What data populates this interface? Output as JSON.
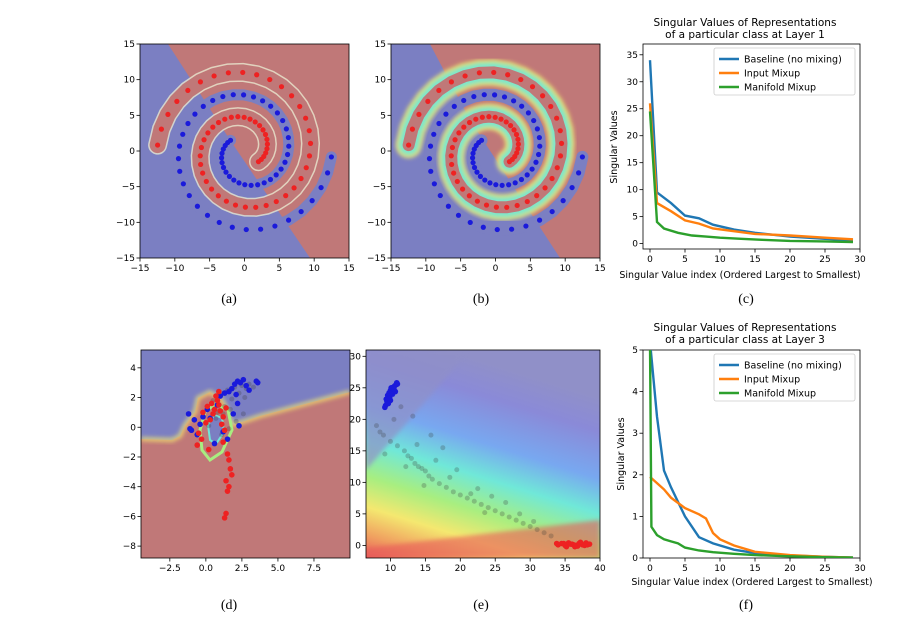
{
  "figure": {
    "captions": [
      "(a)",
      "(b)",
      "(c)",
      "(d)",
      "(e)",
      "(f)"
    ]
  },
  "colors": {
    "blue_region": "#7b7fc2",
    "red_region": "#c07878",
    "blue_point": "#1a1adb",
    "red_point": "#ee2222",
    "baseline": "#1f77b4",
    "input_mixup": "#ff7f0e",
    "manifold_mixup": "#2ca02c"
  },
  "chart_data": [
    {
      "id": "a",
      "type": "scatter",
      "title": "",
      "xlim": [
        -15,
        15
      ],
      "ylim": [
        -15,
        15
      ],
      "xticks": [
        -15,
        -10,
        -5,
        0,
        5,
        10,
        15
      ],
      "yticks": [
        -15,
        -10,
        -5,
        0,
        5,
        10,
        15
      ],
      "series": [
        {
          "name": "class 0 (blue)",
          "spiral": {
            "a": 1.0,
            "t_start": 2.5,
            "t_end": 12.5,
            "n": 55,
            "rotate_pi": false
          }
        },
        {
          "name": "class 1 (red)",
          "spiral": {
            "a": 1.0,
            "t_start": 2.5,
            "t_end": 12.5,
            "n": 55,
            "rotate_pi": true
          }
        }
      ],
      "background": "decision regions (baseline)"
    },
    {
      "id": "b",
      "type": "scatter",
      "title": "",
      "xlim": [
        -15,
        15
      ],
      "ylim": [
        -15,
        15
      ],
      "xticks": [
        -15,
        -10,
        -5,
        0,
        5,
        10,
        15
      ],
      "yticks": [
        -15,
        -10,
        -5,
        0,
        5,
        10,
        15
      ],
      "series": [
        {
          "name": "class 0 (blue)",
          "spiral": {
            "a": 1.0,
            "t_start": 2.5,
            "t_end": 12.5,
            "n": 55,
            "rotate_pi": false
          }
        },
        {
          "name": "class 1 (red)",
          "spiral": {
            "a": 1.0,
            "t_start": 2.5,
            "t_end": 12.5,
            "n": 55,
            "rotate_pi": true
          }
        }
      ],
      "background": "decision regions (manifold mixup)"
    },
    {
      "id": "c",
      "type": "line",
      "title": "Singular Values of Representations\nof a particular class at Layer 1",
      "xlabel": "Singular Value index (Ordered Largest to Smallest)",
      "ylabel": "Singular Values",
      "xlim": [
        -1,
        30
      ],
      "ylim": [
        -1,
        37
      ],
      "xticks": [
        0,
        5,
        10,
        15,
        20,
        25,
        30
      ],
      "yticks": [
        0,
        5,
        10,
        15,
        20,
        25,
        30,
        35
      ],
      "legend_position": "top-right",
      "series": [
        {
          "name": "Baseline (no mixing)",
          "x": [
            0,
            1,
            3,
            5,
            7,
            9,
            12,
            15,
            20,
            25,
            29
          ],
          "values": [
            34,
            9.5,
            7.5,
            5.2,
            4.7,
            3.5,
            2.6,
            2.0,
            1.3,
            0.9,
            0.6
          ]
        },
        {
          "name": "Input Mixup",
          "x": [
            0,
            1,
            3,
            5,
            7,
            9,
            12,
            15,
            20,
            25,
            29
          ],
          "values": [
            26,
            7.5,
            6.0,
            4.3,
            3.7,
            2.8,
            2.3,
            1.8,
            1.5,
            1.1,
            0.8
          ]
        },
        {
          "name": "Manifold Mixup",
          "x": [
            0,
            1,
            2,
            4,
            6,
            8,
            10,
            13,
            16,
            20,
            25,
            29
          ],
          "values": [
            24.5,
            4.0,
            2.8,
            2.0,
            1.5,
            1.3,
            1.1,
            0.9,
            0.7,
            0.5,
            0.4,
            0.3
          ]
        }
      ]
    },
    {
      "id": "d",
      "type": "scatter",
      "title": "",
      "xlim": [
        -4.5,
        10
      ],
      "ylim": [
        -8.8,
        5.2
      ],
      "xticks": [
        -2.5,
        0.0,
        2.5,
        5.0,
        7.5
      ],
      "xtick_labels": [
        "-2.5",
        "0.0",
        "2.5",
        "5.0",
        "7.5"
      ],
      "yticks": [
        -8,
        -6,
        -4,
        -2,
        0,
        2,
        4
      ],
      "series": [
        {
          "name": "class 0 (blue)",
          "x": [
            -1.2,
            -0.8,
            -1.0,
            -0.6,
            -0.4,
            0.1,
            0.3,
            0.8,
            1.0,
            1.3,
            1.6,
            1.8,
            2.0,
            2.2,
            2.4,
            2.6,
            2.8,
            3.0,
            3.5,
            3.6,
            2.2,
            1.9,
            2.3,
            1.2,
            1.5,
            0.6,
            -1.1,
            -0.2,
            2.1
          ],
          "values": [
            0.9,
            0.5,
            -0.2,
            -0.5,
            0.2,
            1.2,
            0.6,
            1.5,
            2.1,
            2.3,
            2.4,
            2.6,
            2.9,
            3.1,
            3.0,
            3.2,
            2.8,
            2.5,
            3.1,
            3.0,
            1.6,
            0.9,
            0.1,
            -0.3,
            -0.8,
            -1.1,
            -0.1,
            0.7,
            2.2
          ]
        },
        {
          "name": "class 1 (red)",
          "x": [
            -0.2,
            0.1,
            0.4,
            0.6,
            0.8,
            1.0,
            1.2,
            1.4,
            0.3,
            0.5,
            0.7,
            0.9,
            1.1,
            1.3,
            -0.6,
            -0.3,
            0.2,
            1.5,
            1.6,
            1.7,
            1.8,
            1.4,
            1.6,
            1.5,
            1.4,
            1.3,
            1.2,
            0.0,
            -0.5,
            0.9
          ],
          "values": [
            1.0,
            1.4,
            1.6,
            1.2,
            1.8,
            1.1,
            0.7,
            1.3,
            0.5,
            0.9,
            2.1,
            2.4,
            0.2,
            -0.2,
            -1.2,
            -0.8,
            -1.5,
            -1.8,
            -2.2,
            -2.8,
            -3.2,
            -3.6,
            -4.0,
            -4.3,
            -5.8,
            -6.1,
            -1.0,
            0.3,
            -0.4,
            1.5
          ]
        },
        {
          "name": "mixed (gray)",
          "x": [
            0.5,
            1.0,
            1.5,
            2.0,
            2.5,
            3.0,
            0.8,
            1.3,
            1.8,
            2.3,
            2.8,
            3.3,
            0.2,
            0.7,
            1.2,
            1.7,
            2.2,
            2.7,
            1.1,
            1.6,
            2.1,
            2.6
          ],
          "values": [
            1.8,
            2.2,
            2.5,
            2.7,
            2.8,
            2.9,
            1.0,
            1.4,
            1.9,
            2.3,
            2.6,
            2.7,
            0.1,
            0.6,
            0.9,
            1.2,
            1.6,
            2.0,
            -0.5,
            -0.1,
            0.4,
            0.9
          ]
        }
      ],
      "background": "decision regions (input space)"
    },
    {
      "id": "e",
      "type": "scatter",
      "title": "",
      "xlim": [
        6.5,
        40
      ],
      "ylim": [
        -2,
        31
      ],
      "xticks": [
        10,
        15,
        20,
        25,
        30,
        35,
        40
      ],
      "yticks": [
        0,
        5,
        10,
        15,
        20,
        25,
        30
      ],
      "series": [
        {
          "name": "class 0 (blue)",
          "x": [
            9.4,
            9.6,
            9.8,
            10.0,
            10.2,
            10.4,
            10.6,
            10.8,
            11.0,
            9.5,
            9.9,
            10.3,
            10.7,
            10.1,
            9.7,
            10.5,
            9.3,
            10.9,
            9.2,
            10.0
          ],
          "values": [
            23.2,
            23.8,
            24.2,
            24.6,
            24.9,
            25.1,
            25.3,
            25.5,
            25.6,
            22.8,
            23.4,
            24.0,
            24.4,
            25.0,
            22.5,
            24.8,
            22.2,
            25.8,
            21.9,
            23.0
          ]
        },
        {
          "name": "class 1 (red)",
          "x": [
            34.0,
            34.5,
            35.0,
            35.5,
            36.0,
            36.5,
            37.0,
            37.5,
            38.0,
            38.5,
            35.2,
            36.2,
            37.2,
            34.8,
            36.8,
            37.8,
            35.8,
            38.2,
            33.8,
            36.4
          ],
          "values": [
            0.1,
            0.3,
            0.0,
            0.4,
            0.2,
            0.0,
            0.3,
            0.1,
            0.4,
            0.2,
            -0.2,
            0.1,
            0.5,
            0.3,
            -0.1,
            0.0,
            0.2,
            0.1,
            0.3,
            -0.2
          ]
        },
        {
          "name": "mixed (gray)",
          "x": [
            8.0,
            8.5,
            9.0,
            10.0,
            11.0,
            12.0,
            12.5,
            13.0,
            13.5,
            14.0,
            14.5,
            15.0,
            15.5,
            16.0,
            17.0,
            18.0,
            19.0,
            20.0,
            21.0,
            22.0,
            23.0,
            24.0,
            25.0,
            26.0,
            27.0,
            28.0,
            29.0,
            30.0,
            31.0,
            32.0,
            33.0,
            11.5,
            13.2,
            15.8,
            17.5,
            19.5,
            22.5,
            24.5,
            26.5,
            28.5,
            30.5,
            12.2,
            14.8,
            16.5,
            18.5,
            21.5,
            23.5,
            9.2,
            10.5,
            13.8
          ],
          "values": [
            19.0,
            18.0,
            17.5,
            16.5,
            15.8,
            15.0,
            14.2,
            13.8,
            13.0,
            12.5,
            12.2,
            11.8,
            11.0,
            10.5,
            9.8,
            9.2,
            8.5,
            8.0,
            7.5,
            7.0,
            6.5,
            6.0,
            5.5,
            5.0,
            4.5,
            4.0,
            3.5,
            3.0,
            2.5,
            2.0,
            1.5,
            22.0,
            20.5,
            17.5,
            15.5,
            12.0,
            9.0,
            7.8,
            6.8,
            5.0,
            3.8,
            12.5,
            9.5,
            13.5,
            10.8,
            8.2,
            5.2,
            14.5,
            20.0,
            16.0
          ]
        }
      ],
      "background": "rainbow prediction gradient (hidden space)"
    },
    {
      "id": "f",
      "type": "line",
      "title": "Singular Values of Representations\nof a particular class at Layer 3",
      "xlabel": "Singular Value index (Ordered Largest to Smallest)",
      "ylabel": "Singular Values",
      "xlim": [
        -1,
        30
      ],
      "ylim": [
        0,
        5
      ],
      "xticks": [
        0,
        5,
        10,
        15,
        20,
        25,
        30
      ],
      "yticks": [
        0,
        1,
        2,
        3,
        4,
        5
      ],
      "legend_position": "top-right",
      "series": [
        {
          "name": "Baseline (no mixing)",
          "x": [
            0,
            1,
            2,
            3,
            5,
            7,
            9,
            12,
            15,
            20,
            25,
            29
          ],
          "values": [
            5.2,
            3.4,
            2.1,
            1.7,
            1.0,
            0.5,
            0.35,
            0.2,
            0.12,
            0.06,
            0.03,
            0.01
          ]
        },
        {
          "name": "Input Mixup",
          "x": [
            0,
            1,
            2,
            3,
            5,
            7,
            8,
            9,
            10,
            12,
            15,
            20,
            25,
            29
          ],
          "values": [
            1.95,
            1.8,
            1.65,
            1.45,
            1.2,
            1.05,
            0.95,
            0.6,
            0.45,
            0.3,
            0.15,
            0.07,
            0.03,
            0.01
          ]
        },
        {
          "name": "Manifold Mixup",
          "x": [
            0,
            0.2,
            1,
            2,
            3,
            4,
            5,
            7,
            9,
            12,
            15,
            20,
            25,
            29
          ],
          "values": [
            5.2,
            0.75,
            0.55,
            0.45,
            0.4,
            0.35,
            0.25,
            0.18,
            0.14,
            0.1,
            0.07,
            0.04,
            0.02,
            0.01
          ]
        }
      ]
    }
  ]
}
